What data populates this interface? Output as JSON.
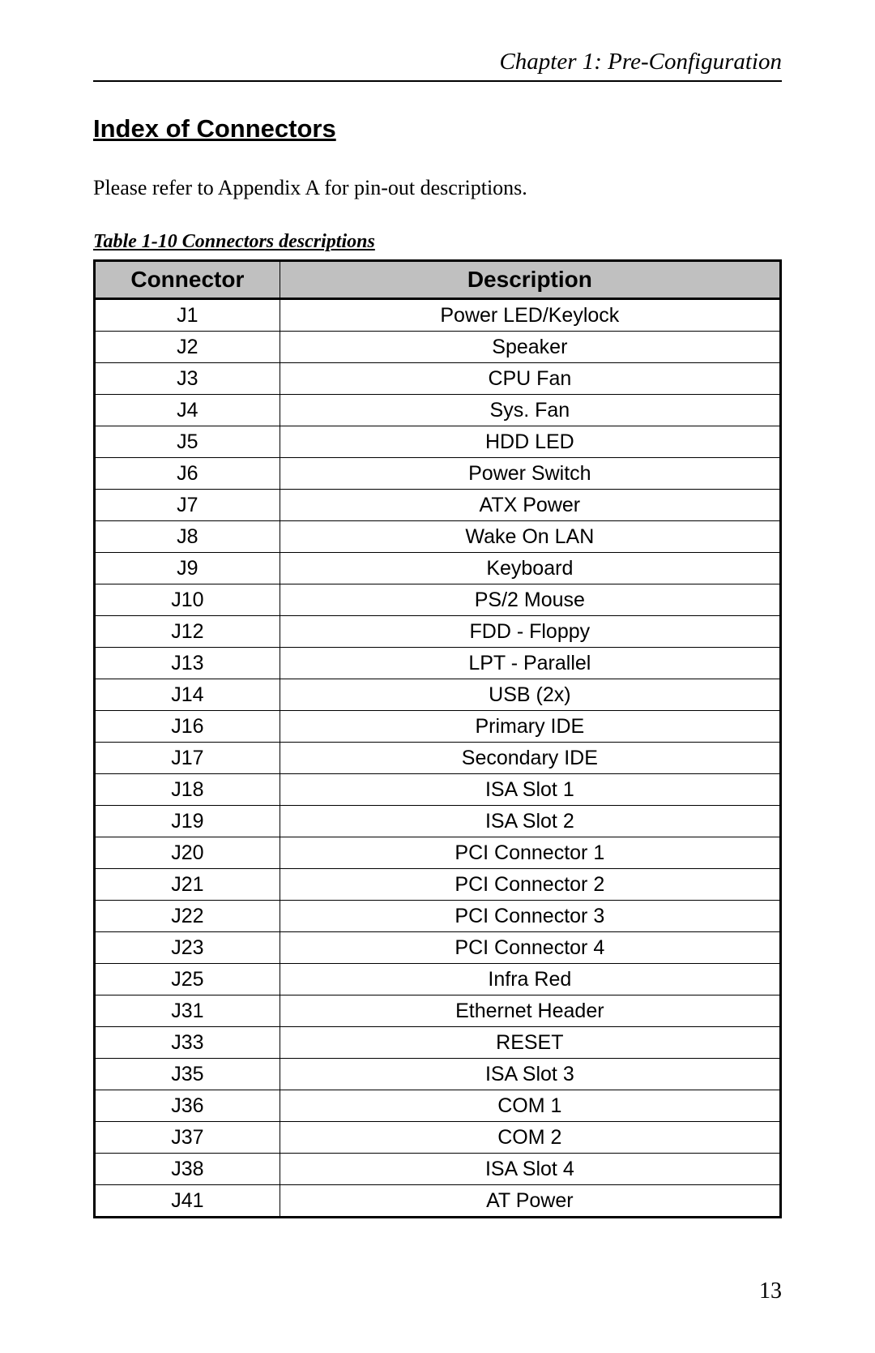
{
  "header": {
    "chapter": "Chapter 1: Pre-Configuration"
  },
  "section": {
    "title": "Index of Connectors",
    "intro": "Please refer to Appendix A for pin-out descriptions."
  },
  "table": {
    "caption": "Table 1-10 Connectors descriptions",
    "columns": [
      "Connector",
      "Description"
    ],
    "rows": [
      [
        "J1",
        "Power LED/Keylock"
      ],
      [
        "J2",
        "Speaker"
      ],
      [
        "J3",
        "CPU Fan"
      ],
      [
        "J4",
        "Sys. Fan"
      ],
      [
        "J5",
        "HDD LED"
      ],
      [
        "J6",
        "Power Switch"
      ],
      [
        "J7",
        "ATX Power"
      ],
      [
        "J8",
        "Wake On LAN"
      ],
      [
        "J9",
        "Keyboard"
      ],
      [
        "J10",
        "PS/2 Mouse"
      ],
      [
        "J12",
        "FDD - Floppy"
      ],
      [
        "J13",
        "LPT - Parallel"
      ],
      [
        "J14",
        "USB (2x)"
      ],
      [
        "J16",
        "Primary IDE"
      ],
      [
        "J17",
        "Secondary IDE"
      ],
      [
        "J18",
        "ISA Slot 1"
      ],
      [
        "J19",
        "ISA Slot 2"
      ],
      [
        "J20",
        "PCI Connector 1"
      ],
      [
        "J21",
        "PCI Connector 2"
      ],
      [
        "J22",
        "PCI Connector 3"
      ],
      [
        "J23",
        "PCI Connector 4"
      ],
      [
        "J25",
        "Infra Red"
      ],
      [
        "J31",
        "Ethernet Header"
      ],
      [
        "J33",
        "RESET"
      ],
      [
        "J35",
        "ISA Slot 3"
      ],
      [
        "J36",
        "COM 1"
      ],
      [
        "J37",
        "COM 2"
      ],
      [
        "J38",
        "ISA Slot 4"
      ],
      [
        "J41",
        "AT Power"
      ]
    ],
    "header_bg_color": "#c0c0c0"
  },
  "page_number": "13"
}
